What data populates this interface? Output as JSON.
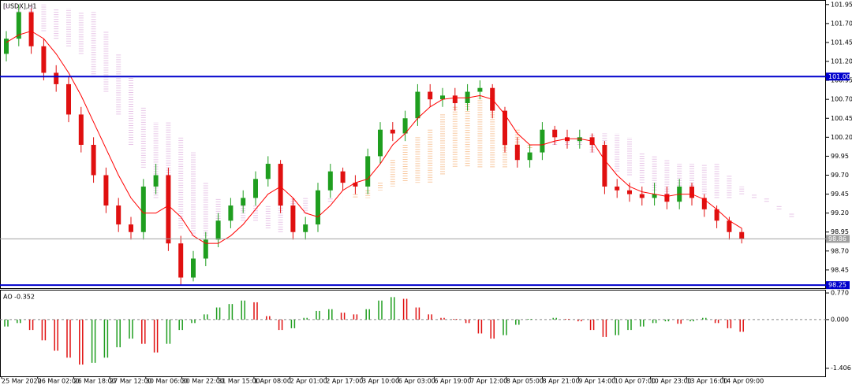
{
  "title": "[USDX],H1",
  "chart_data": [
    {
      "type": "candlestick",
      "ylim": [
        98.21,
        102.01
      ],
      "yticks": [
        101.95,
        {
          "value": 101.7,
          "label": "101.70"
        },
        101.45,
        {
          "value": 101.2,
          "label": "101.20"
        },
        100.95,
        {
          "value": 100.7,
          "label": "100.70"
        },
        100.45,
        {
          "value": 100.2,
          "label": "100.20"
        },
        99.95,
        {
          "value": 99.7,
          "label": "99.70"
        },
        99.45,
        {
          "value": 99.2,
          "label": "99.20"
        },
        98.95,
        {
          "value": 98.7,
          "label": "98.70"
        },
        98.45
      ],
      "up_color": "#1f9e1f",
      "down_color": "#e01010",
      "ma_color": "#ff0000",
      "levels": [
        {
          "value": 101,
          "label": "101.00",
          "color": "#0000cc"
        },
        {
          "value": 98.25,
          "label": "98.25",
          "color": "#0000cc"
        },
        {
          "value": 98.86,
          "label": "98.86",
          "color": "#a0a0a0"
        }
      ],
      "open": [
        101.3,
        101.5,
        101.85,
        101.4,
        101.05,
        100.9,
        100.5,
        100.1,
        99.7,
        99.3,
        99.05,
        98.95,
        99.55,
        99.7,
        98.8,
        98.35,
        98.6,
        98.85,
        99.1,
        99.3,
        99.4,
        99.65,
        99.85,
        99.3,
        98.95,
        99.05,
        99.5,
        99.75,
        99.6,
        99.55,
        99.95,
        100.3,
        100.25,
        100.45,
        100.8,
        100.7,
        100.75,
        100.65,
        100.8,
        100.85,
        100.55,
        100.1,
        99.9,
        100.0,
        100.3,
        100.2,
        100.15,
        100.2,
        100.1,
        99.55,
        99.5,
        99.45,
        99.4,
        99.45,
        99.35,
        99.55,
        99.4,
        99.25,
        99.1,
        98.95
      ],
      "high": [
        101.6,
        101.95,
        101.9,
        101.5,
        101.15,
        101.0,
        100.6,
        100.2,
        99.8,
        99.4,
        99.15,
        99.65,
        99.85,
        99.8,
        98.9,
        98.7,
        98.95,
        99.2,
        99.4,
        99.5,
        99.75,
        99.95,
        99.9,
        99.4,
        99.15,
        99.6,
        99.85,
        99.8,
        99.7,
        100.05,
        100.4,
        100.4,
        100.55,
        100.9,
        100.9,
        100.85,
        100.85,
        100.9,
        100.95,
        100.9,
        100.6,
        100.2,
        100.1,
        100.4,
        100.35,
        100.3,
        100.3,
        100.25,
        100.15,
        99.65,
        99.6,
        99.55,
        99.6,
        99.55,
        99.65,
        99.6,
        99.45,
        99.3,
        99.15,
        99.0
      ],
      "low": [
        101.2,
        101.4,
        101.3,
        100.95,
        100.8,
        100.4,
        100.0,
        99.6,
        99.2,
        98.95,
        98.85,
        98.85,
        99.45,
        98.7,
        98.25,
        98.3,
        98.5,
        98.75,
        99.0,
        99.2,
        99.3,
        99.55,
        99.2,
        98.85,
        98.85,
        98.95,
        99.4,
        99.5,
        99.45,
        99.45,
        99.85,
        100.15,
        100.15,
        100.35,
        100.6,
        100.6,
        100.55,
        100.55,
        100.7,
        100.45,
        100.0,
        99.8,
        99.8,
        99.9,
        100.1,
        100.05,
        100.05,
        100.0,
        99.45,
        99.4,
        99.35,
        99.3,
        99.3,
        99.25,
        99.25,
        99.3,
        99.15,
        99.0,
        98.85,
        98.8
      ],
      "close": [
        101.5,
        101.85,
        101.4,
        101.05,
        100.9,
        100.5,
        100.1,
        99.7,
        99.3,
        99.05,
        98.95,
        99.55,
        99.7,
        98.8,
        98.35,
        98.6,
        98.85,
        99.1,
        99.3,
        99.4,
        99.65,
        99.85,
        99.3,
        98.95,
        99.05,
        99.5,
        99.75,
        99.6,
        99.55,
        99.95,
        100.3,
        100.25,
        100.45,
        100.8,
        100.7,
        100.75,
        100.65,
        100.8,
        100.85,
        100.55,
        100.1,
        99.9,
        100.0,
        100.3,
        100.2,
        100.15,
        100.2,
        100.1,
        99.55,
        99.5,
        99.45,
        99.4,
        99.45,
        99.35,
        99.55,
        99.4,
        99.25,
        99.1,
        98.95,
        98.86
      ],
      "ma": [
        101.45,
        101.55,
        101.6,
        101.5,
        101.3,
        101.05,
        100.75,
        100.4,
        100.05,
        99.7,
        99.4,
        99.2,
        99.2,
        99.3,
        99.15,
        98.9,
        98.8,
        98.8,
        98.9,
        99.05,
        99.25,
        99.45,
        99.55,
        99.4,
        99.2,
        99.15,
        99.3,
        99.5,
        99.6,
        99.65,
        99.85,
        100.1,
        100.25,
        100.45,
        100.6,
        100.7,
        100.72,
        100.72,
        100.75,
        100.7,
        100.5,
        100.25,
        100.1,
        100.1,
        100.15,
        100.18,
        100.18,
        100.15,
        99.9,
        99.7,
        99.55,
        99.48,
        99.45,
        99.42,
        99.45,
        99.45,
        99.38,
        99.25,
        99.1,
        99.0
      ],
      "cloud": {
        "color_a": "#f4a460",
        "color_b": "#d8a0d8",
        "span_a": [
          101.9,
          101.85,
          101.7,
          101.6,
          101.5,
          101.4,
          101.3,
          101.0,
          100.8,
          100.5,
          100.1,
          99.8,
          99.4,
          99.2,
          99.0,
          98.9,
          98.9,
          99.0,
          99.1,
          99.1,
          99.1,
          99.0,
          98.95,
          99.1,
          99.2,
          99.3,
          99.35,
          99.4,
          99.45,
          99.5,
          99.6,
          99.9,
          100.1,
          100.2,
          100.3,
          100.5,
          100.6,
          100.7,
          100.75,
          100.75,
          100.5,
          100.3,
          100.1,
          100.1,
          100.1,
          100.1,
          100.1,
          100.0,
          99.9,
          99.75,
          99.7,
          99.6,
          99.5,
          99.45,
          99.5,
          99.5,
          99.45,
          99.4,
          99.4,
          99.45,
          99.4,
          99.35,
          99.25,
          99.15
        ],
        "span_b": [
          101.95,
          101.95,
          101.95,
          101.95,
          101.9,
          101.9,
          101.85,
          101.85,
          101.6,
          101.3,
          101.0,
          100.6,
          100.4,
          100.4,
          100.2,
          100.0,
          99.6,
          99.4,
          99.3,
          99.3,
          99.3,
          99.3,
          99.4,
          99.4,
          99.4,
          99.4,
          99.4,
          99.4,
          99.4,
          99.4,
          99.5,
          99.55,
          99.6,
          99.6,
          99.6,
          99.7,
          99.8,
          99.8,
          99.8,
          99.8,
          99.8,
          99.95,
          100.05,
          100.15,
          100.15,
          100.2,
          100.2,
          100.25,
          100.25,
          100.25,
          100.2,
          100.0,
          99.95,
          99.9,
          99.85,
          99.85,
          99.85,
          99.85,
          99.7,
          99.55,
          99.45,
          99.4,
          99.3,
          99.2
        ]
      }
    },
    {
      "type": "bar",
      "label": "AO -0.352",
      "ylim": [
        -1.64,
        0.84
      ],
      "yticks": [
        {
          "value": 0.77,
          "label": "0.770"
        },
        {
          "value": 0,
          "label": "0.000"
        },
        -1.406
      ],
      "up_color": "#1f9e1f",
      "down_color": "#e01010",
      "values": [
        -0.2,
        -0.1,
        -0.3,
        -0.6,
        -0.9,
        -1.1,
        -1.3,
        -1.25,
        -1.1,
        -0.8,
        -0.55,
        -0.7,
        -0.95,
        -0.7,
        -0.3,
        -0.1,
        0.15,
        0.35,
        0.45,
        0.55,
        0.5,
        0.1,
        -0.3,
        -0.25,
        0.05,
        0.25,
        0.3,
        0.2,
        0.15,
        0.3,
        0.55,
        0.65,
        0.6,
        0.35,
        0.15,
        0.05,
        0.02,
        -0.1,
        -0.4,
        -0.55,
        -0.45,
        -0.15,
        0.02,
        0.0,
        0.05,
        0.02,
        -0.05,
        -0.3,
        -0.5,
        -0.45,
        -0.3,
        -0.2,
        -0.1,
        -0.05,
        -0.12,
        -0.05,
        0.05,
        -0.1,
        -0.25,
        -0.352
      ]
    }
  ],
  "time_labels": [
    "25 Mar 2020",
    "26 Mar 02:00",
    "26 Mar 18:00",
    "27 Mar 12:00",
    "30 Mar 06:00",
    "30 Mar 22:00",
    "31 Mar 15:00",
    "1 Apr 08:00",
    "2 Apr 01:00",
    "2 Apr 17:00",
    "3 Apr 10:00",
    "6 Apr 03:00",
    "6 Apr 19:00",
    "7 Apr 12:00",
    "8 Apr 05:00",
    "8 Apr 21:00",
    "9 Apr 14:00",
    "10 Apr 07:00",
    "10 Apr 23:00",
    "13 Apr 16:00",
    "14 Apr 09:00"
  ]
}
